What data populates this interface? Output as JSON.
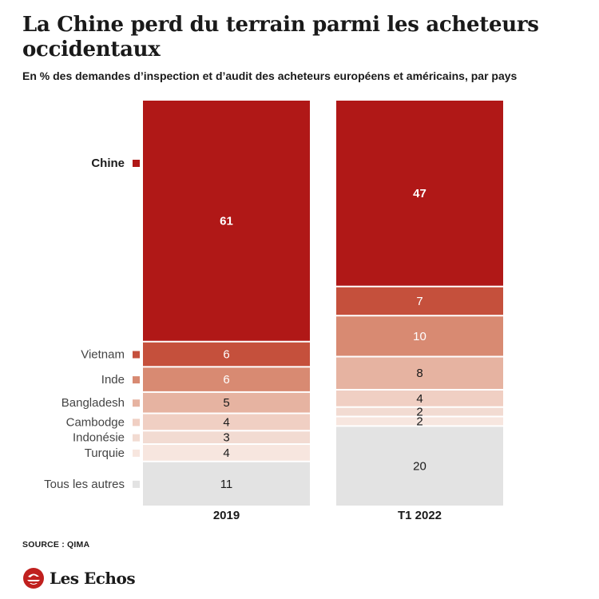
{
  "title": "La Chine perd du terrain parmi les acheteurs occidentaux",
  "subtitle": "En % des demandes d’inspection et d’audit des acheteurs européens et américains, par pays",
  "source": "SOURCE : QIMA",
  "brand": {
    "name": "Les Echos",
    "color": "#c0201e"
  },
  "chart_data": {
    "type": "bar",
    "stacked": true,
    "orientation": "vertical",
    "categories": [
      "2019",
      "T1 2022"
    ],
    "series": [
      {
        "name": "Chine",
        "values": [
          61,
          47
        ],
        "color": "#b01817",
        "emphasis": true
      },
      {
        "name": "Vietnam",
        "values": [
          6,
          7
        ],
        "color": "#c5503c"
      },
      {
        "name": "Inde",
        "values": [
          6,
          10
        ],
        "color": "#d88a72"
      },
      {
        "name": "Bangladesh",
        "values": [
          5,
          8
        ],
        "color": "#e6b3a1"
      },
      {
        "name": "Cambodge",
        "values": [
          4,
          4
        ],
        "color": "#f0cfc3"
      },
      {
        "name": "Indonésie",
        "values": [
          3,
          2
        ],
        "color": "#f2dbd2"
      },
      {
        "name": "Turquie",
        "values": [
          4,
          2
        ],
        "color": "#f7e6df"
      },
      {
        "name": "Tous les autres",
        "values": [
          11,
          20
        ],
        "color": "#e3e3e3"
      }
    ],
    "data_labels": true,
    "legend_position": "left",
    "grid": false
  }
}
